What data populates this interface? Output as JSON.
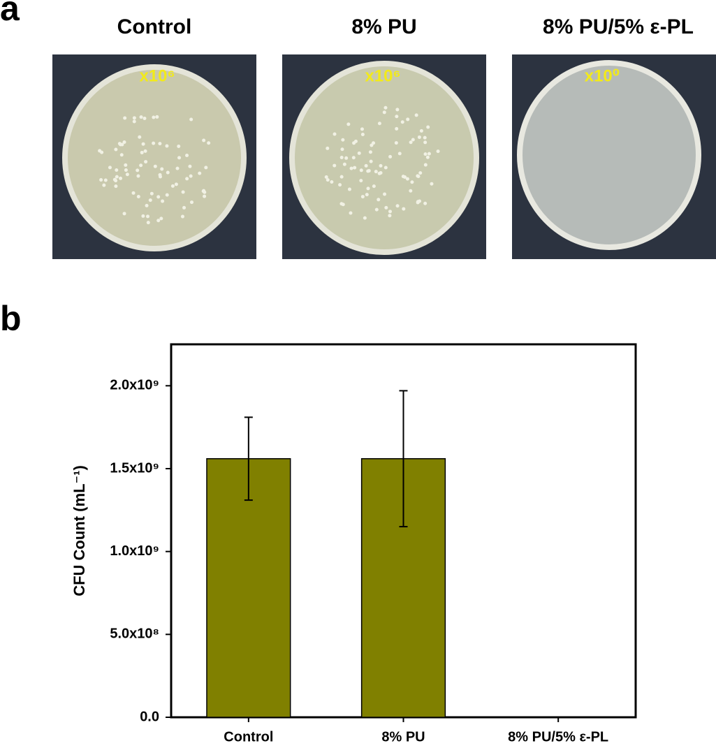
{
  "panel_a": {
    "label": "a",
    "titles": [
      "Control",
      "8% PU",
      "8% PU/5% ε-PL"
    ],
    "dilutions": [
      "x10⁶",
      "x10⁶",
      "x10⁰"
    ]
  },
  "panel_b": {
    "label": "b"
  },
  "chart_data": {
    "type": "bar",
    "y_label": "CFU Count (mL⁻¹)",
    "categories": [
      "Control",
      "8% PU",
      "8% PU/5% ε-PL"
    ],
    "values": [
      1560000000,
      1560000000,
      0
    ],
    "errors": [
      250000000,
      410000000,
      null
    ],
    "color": "#808000",
    "ylim": [
      0,
      2250000000
    ],
    "yticks": [
      {
        "value": 0,
        "label": "0.0"
      },
      {
        "value": 500000000,
        "label": "5.0x10⁸"
      },
      {
        "value": 1000000000,
        "label": "1.0x10⁹"
      },
      {
        "value": 1500000000,
        "label": "1.5x10⁹"
      },
      {
        "value": 2000000000,
        "label": "2.0x10⁹"
      }
    ]
  }
}
